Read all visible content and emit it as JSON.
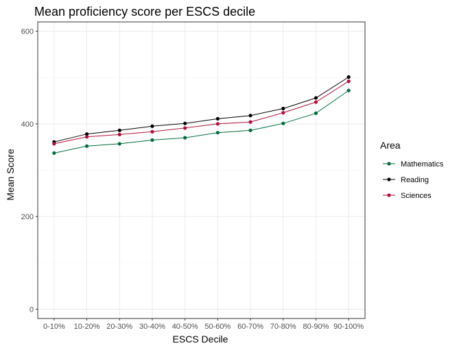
{
  "chart_data": {
    "type": "line",
    "title": "Mean proficiency score per ESCS decile",
    "xlabel": "ESCS Decile",
    "ylabel": "Mean Score",
    "categories": [
      "0-10%",
      "10-20%",
      "20-30%",
      "30-40%",
      "40-50%",
      "50-60%",
      "60-70%",
      "70-80%",
      "80-90%",
      "90-100%"
    ],
    "ylim": [
      -20,
      620
    ],
    "yticks": [
      0,
      200,
      400,
      600
    ],
    "grid": true,
    "legend": {
      "title": "Area",
      "placement": "right"
    },
    "series": [
      {
        "name": "Mathematics",
        "color": "#006d3c",
        "values": [
          337,
          352,
          357,
          365,
          370,
          381,
          386,
          401,
          423,
          472
        ]
      },
      {
        "name": "Reading",
        "color": "#000000",
        "values": [
          361,
          378,
          386,
          395,
          401,
          411,
          418,
          433,
          456,
          501
        ]
      },
      {
        "name": "Sciences",
        "color": "#b0103a",
        "values": [
          357,
          372,
          377,
          383,
          391,
          400,
          404,
          424,
          447,
          492
        ]
      }
    ]
  }
}
